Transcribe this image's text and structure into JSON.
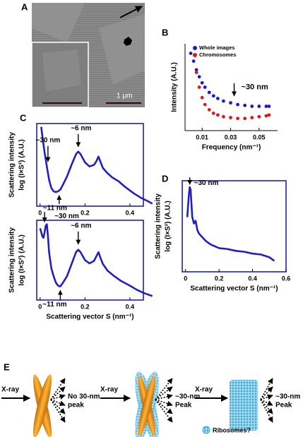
{
  "panel_labels": [
    "A",
    "B",
    "C",
    "D",
    "E"
  ],
  "image": {
    "scale_label": "1 μm"
  },
  "chart_data": [
    {
      "type": "scatter",
      "xlabel": "Frequency (nm⁻¹)",
      "ylabel": [
        "Intensity (A.U.)"
      ],
      "xlim": [
        -0.002,
        0.063
      ],
      "xticks": [
        0.01,
        0.03,
        0.05
      ],
      "ylim": [
        0,
        10
      ],
      "series": [
        {
          "name": "Whole images",
          "color": "#1a1ad0",
          "x": [
            0.002,
            0.004,
            0.006,
            0.008,
            0.01,
            0.012,
            0.015,
            0.018,
            0.021,
            0.025,
            0.03,
            0.035,
            0.04,
            0.045,
            0.05,
            0.055,
            0.057
          ],
          "values": [
            8.9,
            8.0,
            7.0,
            6.2,
            5.5,
            5.0,
            4.4,
            4.0,
            3.7,
            3.4,
            3.2,
            3.0,
            2.9,
            2.8,
            2.8,
            2.8,
            2.8
          ]
        },
        {
          "name": "Chromosomes",
          "color": "#d81a1a",
          "x": [
            0.006,
            0.008,
            0.01,
            0.012,
            0.015,
            0.018,
            0.021,
            0.025,
            0.03,
            0.035,
            0.04,
            0.045,
            0.05,
            0.055,
            0.057
          ],
          "values": [
            6.7,
            5.0,
            3.8,
            3.0,
            2.4,
            2.0,
            1.8,
            1.6,
            1.5,
            1.4,
            1.4,
            1.5,
            1.6,
            1.7,
            1.8
          ]
        }
      ],
      "annotations": [
        {
          "text": "~30 nm",
          "x": 0.0325,
          "y": 4.0
        }
      ]
    },
    {
      "type": "line",
      "ylabel": [
        "Scattering intensity",
        "log (I×S²) (A.U.)"
      ],
      "xlim": [
        -0.015,
        0.46
      ],
      "xticks": [
        0,
        0.2,
        0.4
      ],
      "ylim": [
        0,
        10
      ],
      "series": [
        {
          "color": "#2020c0",
          "x": [
            0.005,
            0.01,
            0.02,
            0.03,
            0.04,
            0.05,
            0.06,
            0.07,
            0.08,
            0.09,
            0.1,
            0.12,
            0.14,
            0.16,
            0.17,
            0.18,
            0.2,
            0.22,
            0.24,
            0.25,
            0.26,
            0.27,
            0.28,
            0.3,
            0.32,
            0.35,
            0.38,
            0.4,
            0.42,
            0.45,
            0.48,
            0.5
          ],
          "values": [
            9.6,
            8.5,
            6.5,
            4.8,
            3.2,
            2.2,
            1.8,
            1.7,
            1.8,
            2.0,
            2.5,
            3.6,
            5.0,
            6.3,
            6.6,
            6.3,
            5.3,
            4.8,
            5.0,
            5.4,
            6.0,
            5.3,
            4.6,
            4.0,
            3.5,
            3.0,
            2.3,
            1.9,
            1.5,
            1.0,
            0.6,
            0.3
          ]
        }
      ],
      "annotations": [
        {
          "text": "~30 nm",
          "x": 0.035,
          "y": 5.4
        },
        {
          "text": "~6 nm",
          "x": 0.17,
          "y": 7.2
        },
        {
          "text": "~11 nm",
          "x": 0.085,
          "y": 1.3
        }
      ]
    },
    {
      "type": "line",
      "xlabel": "Scattering vector S (nm⁻¹)",
      "ylabel": [
        "Scattering intensity",
        "log (I×S²) (A.U.)"
      ],
      "xlim": [
        -0.015,
        0.46
      ],
      "xticks": [
        0,
        0.2,
        0.4
      ],
      "ylim": [
        0,
        10
      ],
      "series": [
        {
          "color": "#2020c0",
          "x": [
            0,
            0.005,
            0.01,
            0.015,
            0.02,
            0.025,
            0.03,
            0.035,
            0.04,
            0.05,
            0.06,
            0.07,
            0.08,
            0.09,
            0.1,
            0.12,
            0.14,
            0.16,
            0.17,
            0.18,
            0.2,
            0.22,
            0.24,
            0.26,
            0.27,
            0.28,
            0.3,
            0.33,
            0.36,
            0.4,
            0.43,
            0.46,
            0.5
          ],
          "values": [
            9.0,
            8.5,
            8.0,
            7.8,
            8.5,
            9.3,
            9.5,
            8.0,
            6.0,
            4.0,
            3.0,
            2.2,
            1.8,
            1.7,
            2.1,
            3.0,
            4.5,
            6.0,
            6.3,
            6.0,
            5.0,
            4.6,
            4.9,
            6.0,
            5.2,
            4.5,
            3.7,
            3.0,
            2.4,
            1.8,
            1.3,
            0.9,
            0.5
          ]
        }
      ],
      "annotations": [
        {
          "text": "~30 nm",
          "x": 0.02,
          "y": 9.8
        },
        {
          "text": "~6 nm",
          "x": 0.17,
          "y": 7.0
        },
        {
          "text": "~11 nm",
          "x": 0.09,
          "y": 1.2
        }
      ]
    },
    {
      "type": "line",
      "xlabel": "Scattering vector S (nm⁻¹)",
      "ylabel": [
        "Scattering intensity",
        "log (I×S²) (A.U.)"
      ],
      "xlim": [
        -0.02,
        0.6
      ],
      "xticks": [
        0,
        0.2,
        0.4,
        0.6
      ],
      "ylim": [
        0,
        10
      ],
      "series": [
        {
          "color": "#2020c0",
          "x": [
            0.01,
            0.02,
            0.025,
            0.03,
            0.035,
            0.04,
            0.05,
            0.06,
            0.07,
            0.08,
            0.1,
            0.12,
            0.15,
            0.2,
            0.25,
            0.3,
            0.35,
            0.4,
            0.45,
            0.5,
            0.53
          ],
          "values": [
            6.0,
            8.5,
            9.3,
            9.0,
            7.5,
            6.0,
            5.3,
            5.6,
            4.6,
            4.2,
            3.8,
            3.4,
            3.0,
            2.6,
            2.5,
            2.3,
            2.2,
            2.0,
            1.9,
            1.6,
            1.2
          ]
        }
      ],
      "annotations": [
        {
          "text": "~30 nm",
          "x": 0.025,
          "y": 9.6
        }
      ]
    }
  ],
  "diagram": {
    "items": [
      {
        "input": "X-ray",
        "output": [
          "No 30-nm",
          "peak"
        ]
      },
      {
        "input": "X-ray",
        "output": [
          "~30-nm",
          "Peak"
        ]
      },
      {
        "input": "X-ray",
        "output": [
          "~30-nm",
          "Peak"
        ]
      }
    ],
    "legend": "Ribosomes?"
  }
}
